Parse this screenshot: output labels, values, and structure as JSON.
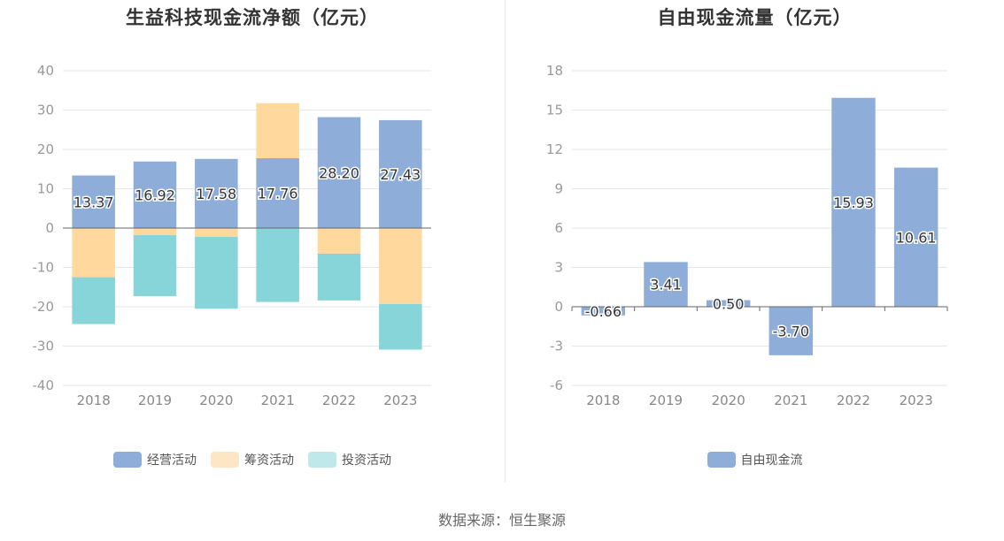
{
  "source": "数据来源：恒生聚源",
  "chart_data": [
    {
      "type": "bar",
      "stacked": true,
      "title": "生益科技现金流净额（亿元）",
      "categories": [
        "2018",
        "2019",
        "2020",
        "2021",
        "2022",
        "2023"
      ],
      "ylim": [
        -40,
        40
      ],
      "yticks": [
        -40,
        -30,
        -20,
        -10,
        0,
        10,
        20,
        30,
        40
      ],
      "grid": true,
      "legend_position": "bottom",
      "series": [
        {
          "name": "经营活动",
          "color": "#8eadd9",
          "values": [
            13.37,
            16.92,
            17.58,
            17.76,
            28.2,
            27.43
          ],
          "labels": [
            "13.37",
            "16.92",
            "17.58",
            "17.76",
            "28.20",
            "27.43"
          ]
        },
        {
          "name": "筹资活动",
          "color": "#ffd89e",
          "legend_color": "#fde6c4",
          "values": [
            -12.5,
            -1.8,
            -2.2,
            14.0,
            -6.5,
            -19.3
          ]
        },
        {
          "name": "投资活动",
          "color": "#88d5d9",
          "legend_color": "#bfe8ea",
          "values": [
            -11.9,
            -15.5,
            -18.3,
            -18.8,
            -11.9,
            -11.6
          ]
        }
      ]
    },
    {
      "type": "bar",
      "title": "自由现金流量（亿元）",
      "categories": [
        "2018",
        "2019",
        "2020",
        "2021",
        "2022",
        "2023"
      ],
      "ylim": [
        -6,
        18
      ],
      "yticks": [
        -6,
        -3,
        0,
        3,
        6,
        9,
        12,
        15,
        18
      ],
      "grid": true,
      "legend_position": "bottom",
      "series": [
        {
          "name": "自由现金流",
          "color": "#8eadd9",
          "values": [
            -0.66,
            3.41,
            0.5,
            -3.7,
            15.93,
            10.61
          ],
          "labels": [
            "-0.66",
            "3.41",
            "0.50",
            "-3.70",
            "15.93",
            "10.61"
          ]
        }
      ]
    }
  ]
}
